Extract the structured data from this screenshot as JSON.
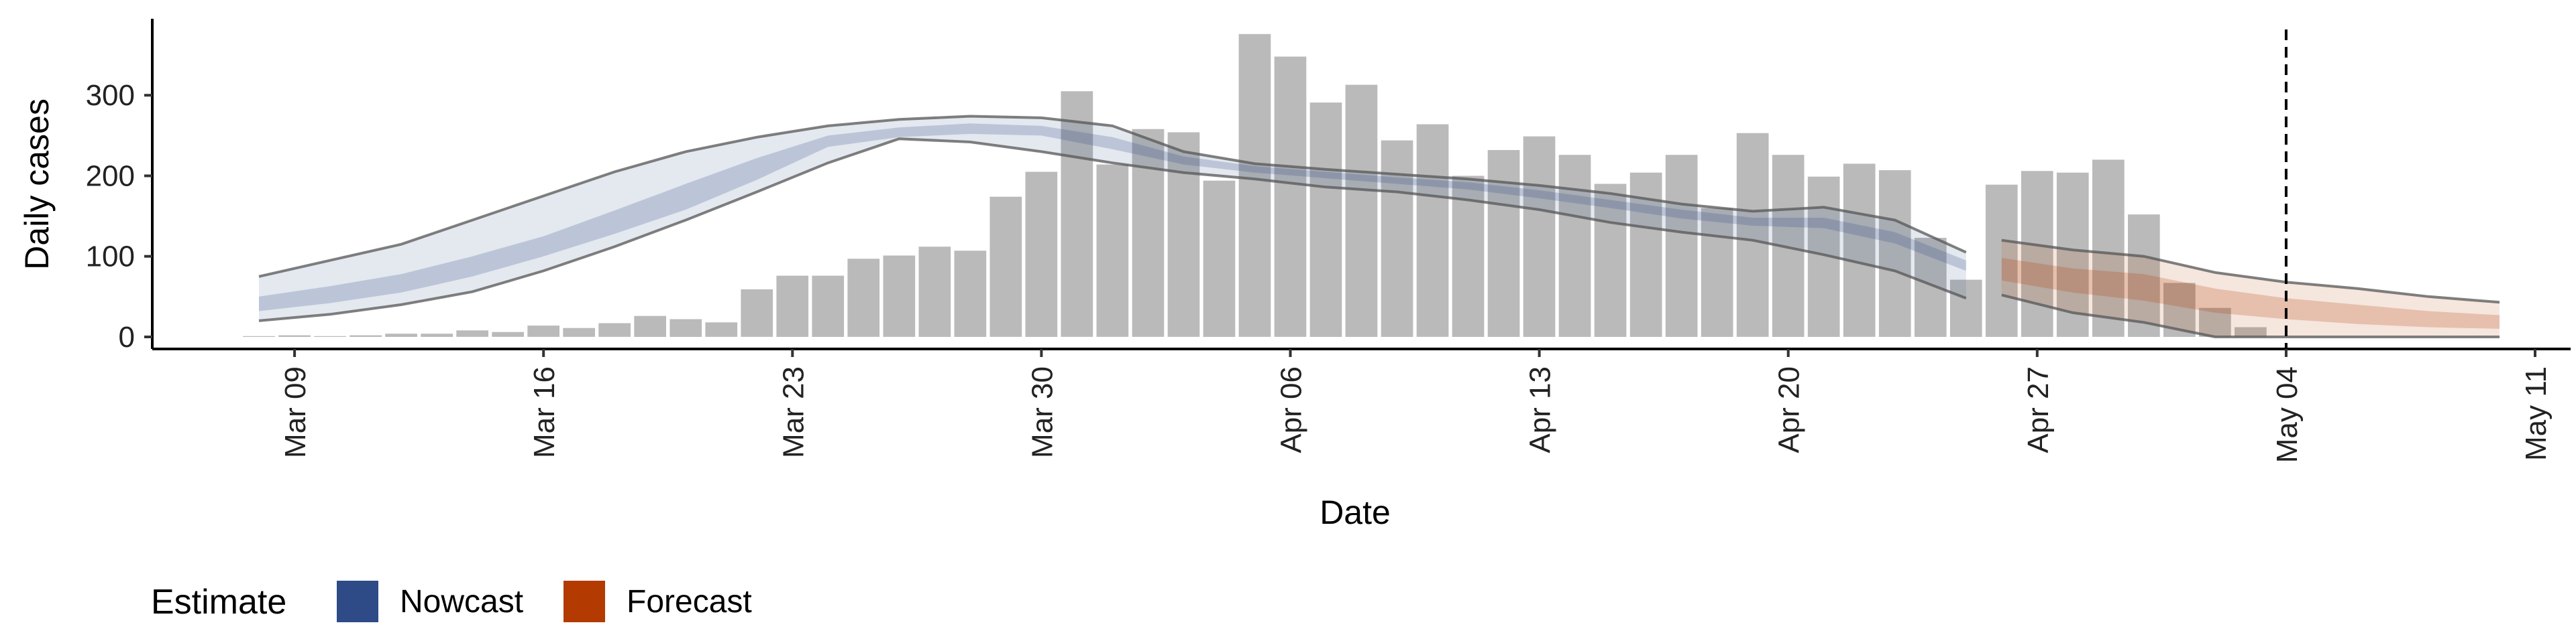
{
  "chart_data": {
    "type": "bar",
    "ylabel": "Daily cases",
    "xlabel": "Date",
    "ylim": [
      -15,
      395
    ],
    "yticks": [
      0,
      100,
      200,
      300
    ],
    "x_range": [
      "2020-03-05",
      "2020-05-12"
    ],
    "xticks": [
      {
        "date": "2020-03-09",
        "label": "Mar 09"
      },
      {
        "date": "2020-03-16",
        "label": "Mar 16"
      },
      {
        "date": "2020-03-23",
        "label": "Mar 23"
      },
      {
        "date": "2020-03-30",
        "label": "Mar 30"
      },
      {
        "date": "2020-04-06",
        "label": "Apr 06"
      },
      {
        "date": "2020-04-13",
        "label": "Apr 13"
      },
      {
        "date": "2020-04-20",
        "label": "Apr 20"
      },
      {
        "date": "2020-04-27",
        "label": "Apr 27"
      },
      {
        "date": "2020-05-04",
        "label": "May 04"
      },
      {
        "date": "2020-05-11",
        "label": "May 11"
      }
    ],
    "reference_line_date": "2020-05-04",
    "reported_cases": {
      "start_date": "2020-03-08",
      "values": [
        1,
        2,
        1,
        2,
        4,
        4,
        8,
        6,
        14,
        11,
        17,
        26,
        22,
        18,
        59,
        76,
        76,
        97,
        101,
        112,
        107,
        174,
        205,
        305,
        214,
        258,
        254,
        194,
        376,
        348,
        291,
        313,
        244,
        264,
        200,
        232,
        249,
        226,
        190,
        204,
        226,
        160,
        253,
        226,
        199,
        215,
        207,
        123,
        71,
        189,
        206,
        204,
        220,
        152,
        67,
        36,
        12
      ]
    },
    "bar_color": "#bababa",
    "legend": {
      "title": "Estimate",
      "entries": [
        {
          "label": "Nowcast",
          "color": "#2e4a87"
        },
        {
          "label": "Forecast",
          "color": "#b33a00"
        }
      ]
    },
    "nowcast": {
      "dates": [
        "2020-03-08",
        "2020-03-10",
        "2020-03-12",
        "2020-03-14",
        "2020-03-16",
        "2020-03-18",
        "2020-03-20",
        "2020-03-22",
        "2020-03-24",
        "2020-03-26",
        "2020-03-28",
        "2020-03-30",
        "2020-04-01",
        "2020-04-03",
        "2020-04-05",
        "2020-04-07",
        "2020-04-09",
        "2020-04-11",
        "2020-04-13",
        "2020-04-15",
        "2020-04-17",
        "2020-04-19",
        "2020-04-21",
        "2020-04-23",
        "2020-04-25"
      ],
      "upper90": [
        75,
        95,
        115,
        145,
        175,
        205,
        230,
        248,
        262,
        270,
        274,
        272,
        262,
        230,
        215,
        208,
        202,
        196,
        188,
        178,
        165,
        156,
        161,
        145,
        105
      ],
      "upper50": [
        50,
        63,
        78,
        100,
        125,
        157,
        190,
        222,
        250,
        260,
        265,
        262,
        248,
        224,
        212,
        205,
        198,
        192,
        182,
        170,
        158,
        148,
        148,
        130,
        95
      ],
      "lower50": [
        32,
        42,
        55,
        75,
        100,
        128,
        158,
        195,
        236,
        248,
        252,
        250,
        233,
        214,
        204,
        197,
        190,
        183,
        172,
        160,
        147,
        138,
        135,
        116,
        82
      ],
      "lower90": [
        20,
        28,
        40,
        56,
        82,
        112,
        145,
        180,
        216,
        246,
        242,
        230,
        216,
        204,
        196,
        186,
        180,
        170,
        158,
        142,
        130,
        120,
        102,
        82,
        48
      ]
    },
    "forecast": {
      "dates": [
        "2020-04-26",
        "2020-04-28",
        "2020-04-30",
        "2020-05-02",
        "2020-05-04",
        "2020-05-06",
        "2020-05-08",
        "2020-05-10"
      ],
      "upper90": [
        120,
        108,
        100,
        80,
        68,
        60,
        50,
        43
      ],
      "upper50": [
        98,
        85,
        78,
        60,
        48,
        40,
        32,
        27
      ],
      "lower50": [
        70,
        55,
        45,
        30,
        22,
        16,
        12,
        10
      ],
      "lower90": [
        52,
        30,
        18,
        0,
        0,
        0,
        0,
        0
      ]
    }
  }
}
